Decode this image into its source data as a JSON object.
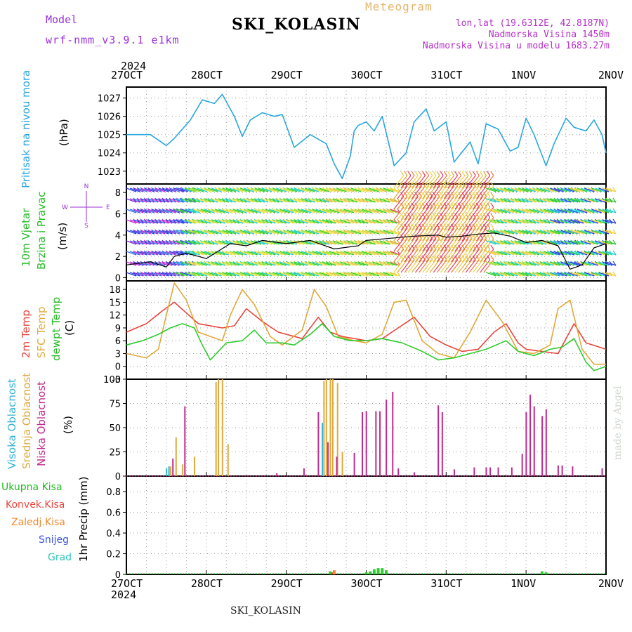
{
  "header": {
    "model_label": "Model",
    "model_name": "wrf-nmm_v3.9.1 e1km",
    "meteogram_label": "Meteogram",
    "station_title": "SKI_KOLASIN",
    "coords": "lon,lat (19.6312E, 42.8187N)",
    "altitude": "Nadmorska Visina 1450m",
    "model_altitude": "Nadmorska Visina u modelu 1683.27m"
  },
  "time_axis": {
    "year": "2024",
    "ticks": [
      "27OCT",
      "28OCT",
      "29OCT",
      "30OCT",
      "31OCT",
      "1NOV",
      "2NOV"
    ]
  },
  "panels": {
    "pressure": {
      "labels": [
        "Pritisak na nivou mora"
      ],
      "unit": "(hPa)"
    },
    "wind": {
      "labels": [
        "10m Vjetar",
        "Brzina i Pravac"
      ],
      "unit": "(m/s)",
      "compass": {
        "north": "N",
        "south": "S",
        "east": "E",
        "west": "W"
      }
    },
    "temp": {
      "labels": [
        "2m Temp",
        "SFC Temp",
        "dewpt Temp"
      ],
      "unit": "(C)"
    },
    "cloud": {
      "labels": [
        "Visoka Oblacnost",
        "Srednja Oblacnost",
        "Niska Oblacnost"
      ],
      "unit": "(%)"
    },
    "precip": {
      "legend": [
        "Ukupna Kisa",
        "Konvek.Kisa",
        "Zaledj.Kisa",
        "Snijeg",
        "Grad"
      ],
      "axis_label": "1hr Precip (mm)"
    }
  },
  "footer": {
    "station": "SKI_KOLASIN",
    "watermark": "made by Angel"
  },
  "colors": {
    "pressure": "#2aa6e0",
    "temp2m": "#e8453c",
    "sfc": "#e0a93a",
    "dewpt": "#2ecc2e",
    "high_cloud": "#36b3d6",
    "mid_cloud": "#e0a93a",
    "low_cloud": "#c22a8c",
    "rain_total": "#2ecc2e",
    "rain_conv": "#e8453c",
    "rain_frz": "#f08a2a",
    "snow": "#3a55e0",
    "hail": "#30c6b8"
  },
  "chart_data": [
    {
      "type": "line",
      "title": "",
      "ylabel": "Pritisak na nivou mora (hPa)",
      "x_ticks": [
        "27OCT",
        "28OCT",
        "29OCT",
        "30OCT",
        "31OCT",
        "1NOV",
        "2NOV"
      ],
      "y_ticks": [
        1023,
        1024,
        1025,
        1026,
        1027
      ],
      "ylim": [
        1022.3,
        1027.6
      ],
      "x_unit": "days since 27OCT 00 UTC",
      "series": [
        {
          "name": "Pritisak na nivou mora",
          "x": [
            0,
            0.3,
            0.5,
            0.6,
            0.8,
            0.95,
            1.1,
            1.2,
            1.35,
            1.45,
            1.55,
            1.7,
            1.85,
            1.95,
            2.1,
            2.3,
            2.5,
            2.6,
            2.7,
            2.8,
            2.85,
            2.9,
            3.0,
            3.1,
            3.2,
            3.35,
            3.5,
            3.6,
            3.75,
            3.85,
            4.0,
            4.1,
            4.3,
            4.4,
            4.5,
            4.65,
            4.8,
            4.9,
            5.0,
            5.1,
            5.25,
            5.35,
            5.5,
            5.6,
            5.75,
            5.85,
            5.95,
            6.0
          ],
          "values": [
            1025.0,
            1025.0,
            1024.4,
            1024.8,
            1025.8,
            1026.9,
            1026.7,
            1027.2,
            1026.0,
            1024.9,
            1025.8,
            1026.2,
            1026.0,
            1026.1,
            1024.3,
            1025.0,
            1024.5,
            1023.4,
            1022.6,
            1023.8,
            1025.2,
            1025.5,
            1025.7,
            1025.2,
            1026.0,
            1023.3,
            1024.0,
            1025.7,
            1026.4,
            1025.2,
            1025.7,
            1023.5,
            1024.6,
            1023.4,
            1025.6,
            1025.3,
            1024.1,
            1024.3,
            1025.9,
            1025.0,
            1023.3,
            1024.5,
            1025.9,
            1025.4,
            1025.2,
            1025.8,
            1025.0,
            1024.0
          ]
        }
      ]
    },
    {
      "type": "line",
      "title": "",
      "ylabel": "Brzina i Pravac (m/s)",
      "y_ticks": [
        0,
        2,
        4,
        6,
        8
      ],
      "ylim": [
        -0.3,
        8.8
      ],
      "series": [
        {
          "name": "10m Vjetar",
          "x": [
            0,
            0.3,
            0.5,
            0.6,
            0.75,
            0.9,
            1.0,
            1.3,
            1.5,
            1.7,
            2.0,
            2.3,
            2.6,
            2.9,
            3.0,
            3.3,
            3.6,
            3.9,
            4.0,
            4.2,
            4.4,
            4.6,
            4.8,
            5.0,
            5.2,
            5.4,
            5.55,
            5.7,
            5.85,
            6.0
          ],
          "values": [
            1.2,
            1.5,
            1.0,
            2.0,
            2.3,
            2.0,
            1.8,
            3.2,
            3.0,
            3.5,
            3.2,
            3.5,
            2.7,
            3.0,
            3.5,
            3.7,
            3.9,
            4.0,
            3.8,
            3.9,
            4.1,
            4.2,
            3.9,
            3.3,
            3.5,
            3.0,
            0.8,
            1.2,
            2.8,
            3.2
          ]
        }
      ]
    },
    {
      "type": "line",
      "title": "",
      "ylabel": "(C)",
      "y_ticks": [
        -3,
        0,
        3,
        6,
        9,
        12,
        15,
        18
      ],
      "ylim": [
        -3,
        20
      ],
      "series": [
        {
          "name": "2m Temp",
          "x": [
            0,
            0.25,
            0.45,
            0.6,
            0.75,
            0.9,
            1.2,
            1.35,
            1.5,
            1.7,
            1.9,
            2.2,
            2.4,
            2.55,
            2.7,
            3.0,
            3.2,
            3.4,
            3.6,
            3.8,
            4.0,
            4.2,
            4.4,
            4.6,
            4.75,
            4.9,
            5.0,
            5.2,
            5.4,
            5.6,
            5.75,
            6.0
          ],
          "values": [
            8.0,
            10.0,
            13.0,
            15.0,
            12.5,
            10.0,
            9.0,
            9.5,
            13.5,
            10.5,
            8.0,
            6.5,
            11.5,
            8.0,
            7.0,
            6.0,
            6.5,
            9.0,
            11.5,
            7.0,
            5.0,
            3.5,
            4.0,
            8.0,
            10.0,
            5.5,
            4.0,
            3.5,
            3.0,
            10.0,
            5.5,
            4.0
          ]
        },
        {
          "name": "SFC Temp",
          "x": [
            0,
            0.25,
            0.4,
            0.5,
            0.6,
            0.75,
            0.9,
            1.2,
            1.3,
            1.45,
            1.6,
            1.8,
            1.95,
            2.2,
            2.35,
            2.5,
            2.65,
            2.85,
            3.0,
            3.2,
            3.35,
            3.5,
            3.7,
            3.9,
            4.1,
            4.3,
            4.5,
            4.7,
            4.9,
            5.1,
            5.3,
            5.4,
            5.55,
            5.7,
            5.85,
            6.0
          ],
          "values": [
            3.0,
            2.0,
            4.0,
            12.0,
            19.5,
            15.5,
            8.0,
            6.0,
            12.0,
            18.0,
            14.5,
            7.0,
            5.0,
            8.5,
            18.0,
            14.0,
            7.0,
            6.0,
            5.5,
            7.5,
            15.0,
            15.5,
            6.0,
            3.0,
            2.0,
            8.0,
            15.5,
            10.5,
            3.5,
            3.0,
            5.0,
            13.5,
            15.5,
            4.0,
            0.5,
            0.5
          ]
        },
        {
          "name": "dewpt Temp",
          "x": [
            0,
            0.2,
            0.4,
            0.55,
            0.7,
            0.85,
            0.95,
            1.05,
            1.25,
            1.45,
            1.6,
            1.75,
            1.95,
            2.1,
            2.3,
            2.45,
            2.6,
            2.8,
            3.0,
            3.2,
            3.45,
            3.7,
            3.9,
            4.1,
            4.3,
            4.5,
            4.75,
            4.9,
            5.1,
            5.3,
            5.45,
            5.6,
            5.75,
            5.85,
            6.0
          ],
          "values": [
            5.0,
            6.0,
            7.5,
            9.0,
            10.0,
            9.0,
            5.0,
            1.5,
            5.5,
            6.0,
            8.5,
            5.5,
            5.5,
            5.0,
            7.5,
            10.0,
            7.0,
            6.0,
            6.0,
            6.5,
            5.5,
            3.5,
            1.5,
            2.0,
            3.0,
            4.0,
            6.0,
            3.5,
            2.5,
            4.0,
            4.5,
            6.5,
            1.0,
            -1.0,
            0.0
          ]
        }
      ]
    },
    {
      "type": "bar",
      "title": "",
      "ylabel": "(%)",
      "y_ticks": [
        0,
        25,
        50,
        75,
        100
      ],
      "ylim": [
        0,
        100
      ],
      "series": [
        {
          "name": "Visoka Oblacnost",
          "x": [
            0.5,
            0.53,
            2.45
          ],
          "values": [
            8,
            10,
            55
          ]
        },
        {
          "name": "Srednja Oblacnost",
          "x": [
            0.55,
            0.62,
            0.7,
            0.85,
            1.12,
            1.15,
            1.2,
            1.27,
            2.47,
            2.5,
            2.55,
            2.58,
            2.64,
            2.7
          ],
          "values": [
            10,
            40,
            12,
            20,
            97,
            100,
            100,
            33,
            98,
            100,
            100,
            100,
            96,
            25
          ]
        },
        {
          "name": "Niska Oblacnost",
          "x": [
            0.58,
            0.73,
            1.88,
            2.22,
            2.4,
            2.52,
            2.63,
            2.85,
            2.95,
            3.0,
            3.12,
            3.17,
            3.25,
            3.33,
            3.4,
            3.6,
            3.9,
            3.95,
            4.1,
            4.35,
            4.5,
            4.55,
            4.65,
            4.82,
            4.95,
            5.0,
            5.05,
            5.1,
            5.2,
            5.25,
            5.4,
            5.45,
            5.58,
            5.95
          ],
          "values": [
            18,
            72,
            3,
            8,
            66,
            35,
            20,
            24,
            66,
            67,
            67,
            67,
            79,
            87,
            8,
            4,
            73,
            66,
            7,
            9,
            9,
            9,
            9,
            9,
            23,
            66,
            84,
            72,
            62,
            69,
            11,
            11,
            10,
            8
          ]
        }
      ]
    },
    {
      "type": "bar",
      "title": "",
      "ylabel": "1hr Precip (mm)",
      "y_ticks": [
        0,
        0.2,
        0.4,
        0.6,
        0.8
      ],
      "ylim": [
        0,
        0.95
      ],
      "series": [
        {
          "name": "Ukupna Kisa",
          "x": [
            2.55,
            3.0,
            3.05,
            3.1,
            3.15,
            3.2,
            3.25,
            5.2,
            5.25
          ],
          "values": [
            0.03,
            0.02,
            0.03,
            0.05,
            0.06,
            0.06,
            0.04,
            0.03,
            0.02
          ]
        },
        {
          "name": "Konvek.Kisa",
          "x": [
            2.58
          ],
          "values": [
            0.02
          ]
        },
        {
          "name": "Zaledj.Kisa",
          "x": [
            2.6
          ],
          "values": [
            0.04
          ]
        }
      ]
    }
  ]
}
